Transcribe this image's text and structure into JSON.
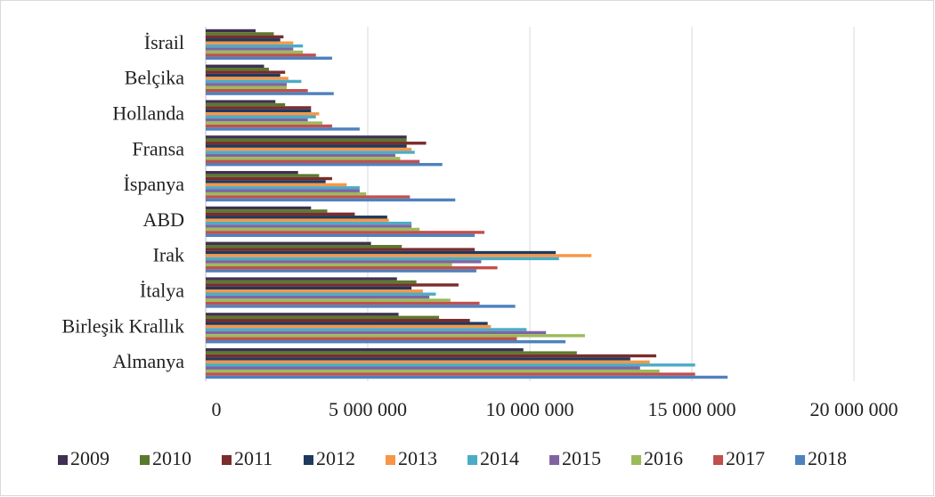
{
  "chart_data": {
    "type": "hbar",
    "categories": [
      "İsrail",
      "Belçika",
      "Hollanda",
      "Fransa",
      "İspanya",
      "ABD",
      "Irak",
      "İtalya",
      "Birleşik Krallık",
      "Almanya"
    ],
    "series": [
      {
        "name": "2009",
        "color": "#3f3151",
        "values": [
          1540000,
          1800000,
          2150000,
          6200000,
          2850000,
          3250000,
          5100000,
          5900000,
          5950000,
          9800000
        ]
      },
      {
        "name": "2010",
        "color": "#5b7a2e",
        "values": [
          2100000,
          1950000,
          2450000,
          6200000,
          3500000,
          3750000,
          6050000,
          6500000,
          7200000,
          11450000
        ]
      },
      {
        "name": "2011",
        "color": "#7b2c2c",
        "values": [
          2400000,
          2450000,
          3250000,
          6800000,
          3900000,
          4600000,
          8300000,
          7800000,
          8150000,
          13900000
        ]
      },
      {
        "name": "2012",
        "color": "#1f3a5f",
        "values": [
          2300000,
          2300000,
          3250000,
          6200000,
          3700000,
          5600000,
          10800000,
          6350000,
          8700000,
          13100000
        ]
      },
      {
        "name": "2013",
        "color": "#f79646",
        "values": [
          2700000,
          2550000,
          3500000,
          6350000,
          4350000,
          5650000,
          11900000,
          6700000,
          8800000,
          13700000
        ]
      },
      {
        "name": "2014",
        "color": "#4bacc6",
        "values": [
          3000000,
          2950000,
          3400000,
          6450000,
          4750000,
          6350000,
          10900000,
          7100000,
          9900000,
          15100000
        ]
      },
      {
        "name": "2015",
        "color": "#8064a2",
        "values": [
          2700000,
          2500000,
          3150000,
          5850000,
          4750000,
          6350000,
          8500000,
          6900000,
          10500000,
          13400000
        ]
      },
      {
        "name": "2016",
        "color": "#9bbb59",
        "values": [
          3000000,
          2500000,
          3600000,
          6000000,
          4950000,
          6600000,
          7600000,
          7550000,
          11700000,
          14000000
        ]
      },
      {
        "name": "2017",
        "color": "#c0504d",
        "values": [
          3400000,
          3150000,
          3900000,
          6600000,
          6300000,
          8600000,
          9000000,
          8450000,
          9600000,
          15100000
        ]
      },
      {
        "name": "2018",
        "color": "#4f81bd",
        "values": [
          3900000,
          3950000,
          4750000,
          7300000,
          7700000,
          8300000,
          8350000,
          9550000,
          11100000,
          16100000
        ]
      }
    ],
    "xlim": [
      0,
      20000000
    ],
    "xticks": [
      0,
      {
        "value": 5000000,
        "label": "5 000 000"
      },
      {
        "value": 10000000,
        "label": "10 000 000"
      },
      {
        "value": 15000000,
        "label": "15 000 000"
      },
      {
        "value": 20000000,
        "label": "20 000 000"
      }
    ],
    "grid": true
  }
}
